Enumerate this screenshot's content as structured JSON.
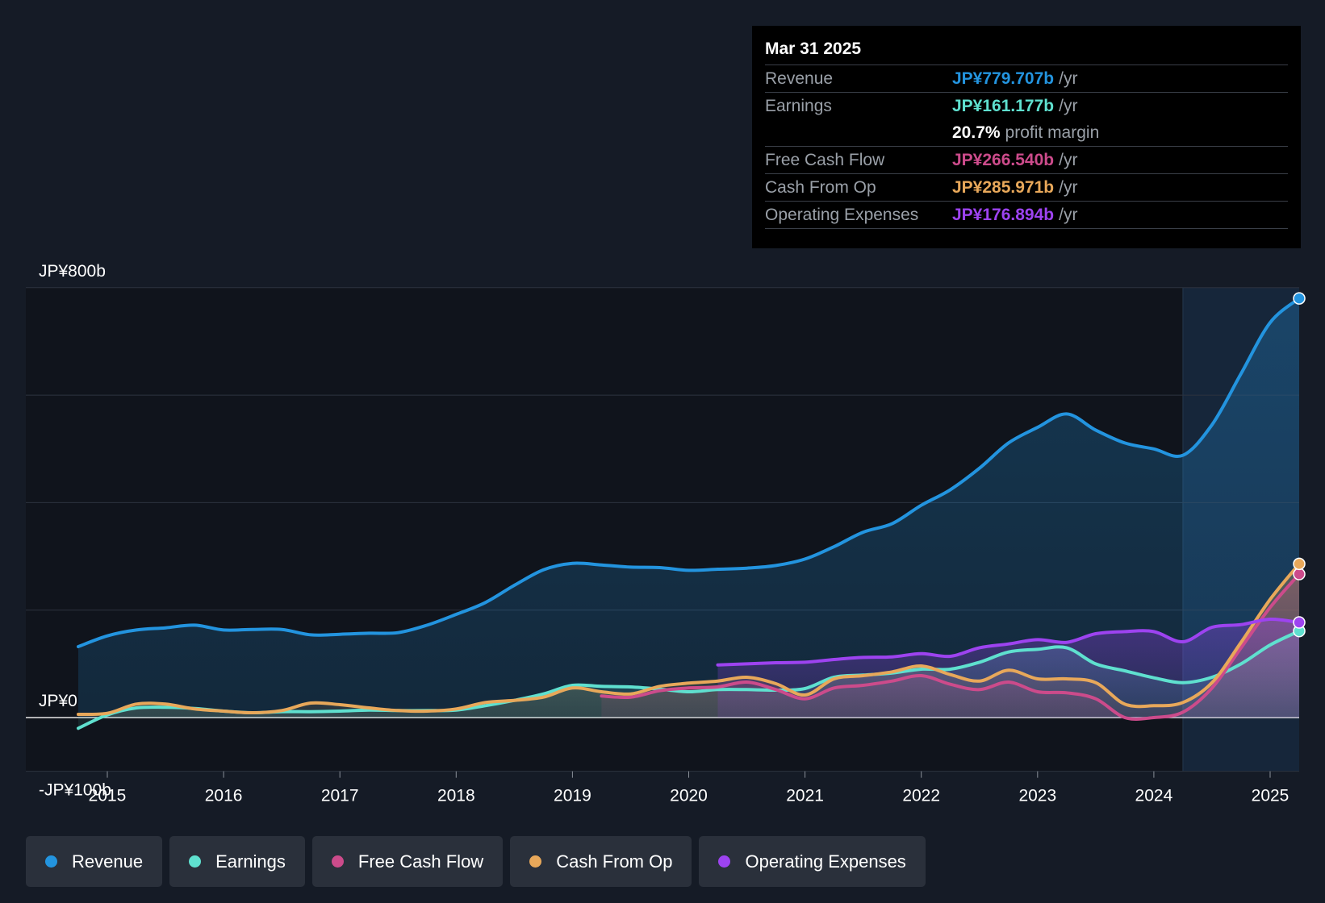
{
  "tooltip": {
    "date": "Mar 31 2025",
    "rows": [
      {
        "label": "Revenue",
        "value": "JP¥779.707b",
        "unit": "/yr",
        "color": "#2394df"
      },
      {
        "label": "Earnings",
        "value": "JP¥161.177b",
        "unit": "/yr",
        "color": "#5fe0cf"
      },
      {
        "label": "",
        "value": "20.7%",
        "unit": "profit margin",
        "color": "#ffffff"
      },
      {
        "label": "Free Cash Flow",
        "value": "JP¥266.540b",
        "unit": "/yr",
        "color": "#cc4b8b"
      },
      {
        "label": "Cash From Op",
        "value": "JP¥285.971b",
        "unit": "/yr",
        "color": "#e8a85a"
      },
      {
        "label": "Operating Expenses",
        "value": "JP¥176.894b",
        "unit": "/yr",
        "color": "#9d43f0"
      }
    ]
  },
  "legend": [
    {
      "label": "Revenue",
      "color": "#2394df"
    },
    {
      "label": "Earnings",
      "color": "#5fe0cf"
    },
    {
      "label": "Free Cash Flow",
      "color": "#cc4b8b"
    },
    {
      "label": "Cash From Op",
      "color": "#e8a85a"
    },
    {
      "label": "Operating Expenses",
      "color": "#9d43f0"
    }
  ],
  "chart_data": {
    "type": "area",
    "y_unit": "JP¥ billions",
    "ylim": [
      -100,
      800
    ],
    "xlim": [
      2014.7,
      2025.25
    ],
    "y_tick_labels": [
      {
        "value": 800,
        "label": "JP¥800b"
      },
      {
        "value": 0,
        "label": "JP¥0"
      },
      {
        "value": -100,
        "label": "-JP¥100b"
      }
    ],
    "gridlines": [
      800,
      600,
      400,
      200,
      0
    ],
    "x_ticks": [
      2015,
      2016,
      2017,
      2018,
      2019,
      2020,
      2021,
      2022,
      2023,
      2024,
      2025
    ],
    "highlight_start": 2024.25,
    "series": [
      {
        "name": "Revenue",
        "color": "#2394df",
        "points": [
          [
            2014.75,
            132
          ],
          [
            2015.0,
            152
          ],
          [
            2015.25,
            163
          ],
          [
            2015.5,
            167
          ],
          [
            2015.75,
            172
          ],
          [
            2016.0,
            163
          ],
          [
            2016.25,
            164
          ],
          [
            2016.5,
            164
          ],
          [
            2016.75,
            154
          ],
          [
            2017.0,
            155
          ],
          [
            2017.25,
            157
          ],
          [
            2017.5,
            158
          ],
          [
            2017.75,
            172
          ],
          [
            2018.0,
            192
          ],
          [
            2018.25,
            214
          ],
          [
            2018.5,
            246
          ],
          [
            2018.75,
            275
          ],
          [
            2019.0,
            287
          ],
          [
            2019.25,
            284
          ],
          [
            2019.5,
            280
          ],
          [
            2019.75,
            279
          ],
          [
            2020.0,
            274
          ],
          [
            2020.25,
            276
          ],
          [
            2020.5,
            278
          ],
          [
            2020.75,
            283
          ],
          [
            2021.0,
            295
          ],
          [
            2021.25,
            318
          ],
          [
            2021.5,
            345
          ],
          [
            2021.75,
            361
          ],
          [
            2022.0,
            395
          ],
          [
            2022.25,
            424
          ],
          [
            2022.5,
            464
          ],
          [
            2022.75,
            511
          ],
          [
            2023.0,
            540
          ],
          [
            2023.25,
            565
          ],
          [
            2023.5,
            535
          ],
          [
            2023.75,
            511
          ],
          [
            2024.0,
            500
          ],
          [
            2024.25,
            488
          ],
          [
            2024.5,
            545
          ],
          [
            2024.75,
            640
          ],
          [
            2025.0,
            735
          ],
          [
            2025.25,
            780
          ]
        ]
      },
      {
        "name": "Earnings",
        "color": "#5fe0cf",
        "points": [
          [
            2014.75,
            -20
          ],
          [
            2015.0,
            5
          ],
          [
            2015.25,
            18
          ],
          [
            2015.5,
            19
          ],
          [
            2015.75,
            17
          ],
          [
            2016.0,
            12
          ],
          [
            2016.25,
            9
          ],
          [
            2016.5,
            11
          ],
          [
            2016.75,
            11
          ],
          [
            2017.0,
            12
          ],
          [
            2017.25,
            14
          ],
          [
            2017.5,
            13
          ],
          [
            2017.75,
            13
          ],
          [
            2018.0,
            14
          ],
          [
            2018.25,
            22
          ],
          [
            2018.5,
            32
          ],
          [
            2018.75,
            44
          ],
          [
            2019.0,
            60
          ],
          [
            2019.25,
            58
          ],
          [
            2019.5,
            57
          ],
          [
            2019.75,
            53
          ],
          [
            2020.0,
            48
          ],
          [
            2020.25,
            52
          ],
          [
            2020.5,
            52
          ],
          [
            2020.75,
            51
          ],
          [
            2021.0,
            54
          ],
          [
            2021.25,
            75
          ],
          [
            2021.5,
            79
          ],
          [
            2021.75,
            83
          ],
          [
            2022.0,
            90
          ],
          [
            2022.25,
            90
          ],
          [
            2022.5,
            103
          ],
          [
            2022.75,
            122
          ],
          [
            2023.0,
            127
          ],
          [
            2023.25,
            130
          ],
          [
            2023.5,
            100
          ],
          [
            2023.75,
            87
          ],
          [
            2024.0,
            74
          ],
          [
            2024.25,
            65
          ],
          [
            2024.5,
            75
          ],
          [
            2024.75,
            100
          ],
          [
            2025.0,
            135
          ],
          [
            2025.25,
            161
          ]
        ]
      },
      {
        "name": "Free Cash Flow",
        "color": "#cc4b8b",
        "points": [
          [
            2019.25,
            40
          ],
          [
            2019.5,
            38
          ],
          [
            2019.75,
            50
          ],
          [
            2020.0,
            55
          ],
          [
            2020.25,
            57
          ],
          [
            2020.5,
            66
          ],
          [
            2020.75,
            52
          ],
          [
            2021.0,
            35
          ],
          [
            2021.25,
            55
          ],
          [
            2021.5,
            60
          ],
          [
            2021.75,
            68
          ],
          [
            2022.0,
            78
          ],
          [
            2022.25,
            62
          ],
          [
            2022.5,
            52
          ],
          [
            2022.75,
            66
          ],
          [
            2023.0,
            48
          ],
          [
            2023.25,
            46
          ],
          [
            2023.5,
            35
          ],
          [
            2023.75,
            0
          ],
          [
            2024.0,
            0
          ],
          [
            2024.25,
            10
          ],
          [
            2024.5,
            55
          ],
          [
            2024.75,
            130
          ],
          [
            2025.0,
            205
          ],
          [
            2025.25,
            267
          ]
        ]
      },
      {
        "name": "Cash From Op",
        "color": "#e8a85a",
        "points": [
          [
            2014.75,
            6
          ],
          [
            2015.0,
            8
          ],
          [
            2015.25,
            25
          ],
          [
            2015.5,
            25
          ],
          [
            2015.75,
            16
          ],
          [
            2016.0,
            12
          ],
          [
            2016.25,
            9
          ],
          [
            2016.5,
            13
          ],
          [
            2016.75,
            27
          ],
          [
            2017.0,
            24
          ],
          [
            2017.25,
            18
          ],
          [
            2017.5,
            13
          ],
          [
            2017.75,
            12
          ],
          [
            2018.0,
            16
          ],
          [
            2018.25,
            28
          ],
          [
            2018.5,
            32
          ],
          [
            2018.75,
            38
          ],
          [
            2019.0,
            55
          ],
          [
            2019.25,
            48
          ],
          [
            2019.5,
            44
          ],
          [
            2019.75,
            58
          ],
          [
            2020.0,
            64
          ],
          [
            2020.25,
            68
          ],
          [
            2020.5,
            75
          ],
          [
            2020.75,
            63
          ],
          [
            2021.0,
            42
          ],
          [
            2021.25,
            72
          ],
          [
            2021.5,
            78
          ],
          [
            2021.75,
            85
          ],
          [
            2022.0,
            96
          ],
          [
            2022.25,
            80
          ],
          [
            2022.5,
            68
          ],
          [
            2022.75,
            88
          ],
          [
            2023.0,
            72
          ],
          [
            2023.25,
            72
          ],
          [
            2023.5,
            65
          ],
          [
            2023.75,
            25
          ],
          [
            2024.0,
            22
          ],
          [
            2024.25,
            28
          ],
          [
            2024.5,
            65
          ],
          [
            2024.75,
            140
          ],
          [
            2025.0,
            220
          ],
          [
            2025.25,
            286
          ]
        ]
      },
      {
        "name": "Operating Expenses",
        "color": "#9d43f0",
        "points": [
          [
            2020.25,
            98
          ],
          [
            2020.5,
            100
          ],
          [
            2020.75,
            102
          ],
          [
            2021.0,
            103
          ],
          [
            2021.25,
            108
          ],
          [
            2021.5,
            112
          ],
          [
            2021.75,
            113
          ],
          [
            2022.0,
            119
          ],
          [
            2022.25,
            114
          ],
          [
            2022.5,
            130
          ],
          [
            2022.75,
            137
          ],
          [
            2023.0,
            145
          ],
          [
            2023.25,
            140
          ],
          [
            2023.5,
            156
          ],
          [
            2023.75,
            160
          ],
          [
            2024.0,
            160
          ],
          [
            2024.25,
            141
          ],
          [
            2024.5,
            168
          ],
          [
            2024.75,
            173
          ],
          [
            2025.0,
            183
          ],
          [
            2025.25,
            177
          ]
        ]
      }
    ]
  }
}
